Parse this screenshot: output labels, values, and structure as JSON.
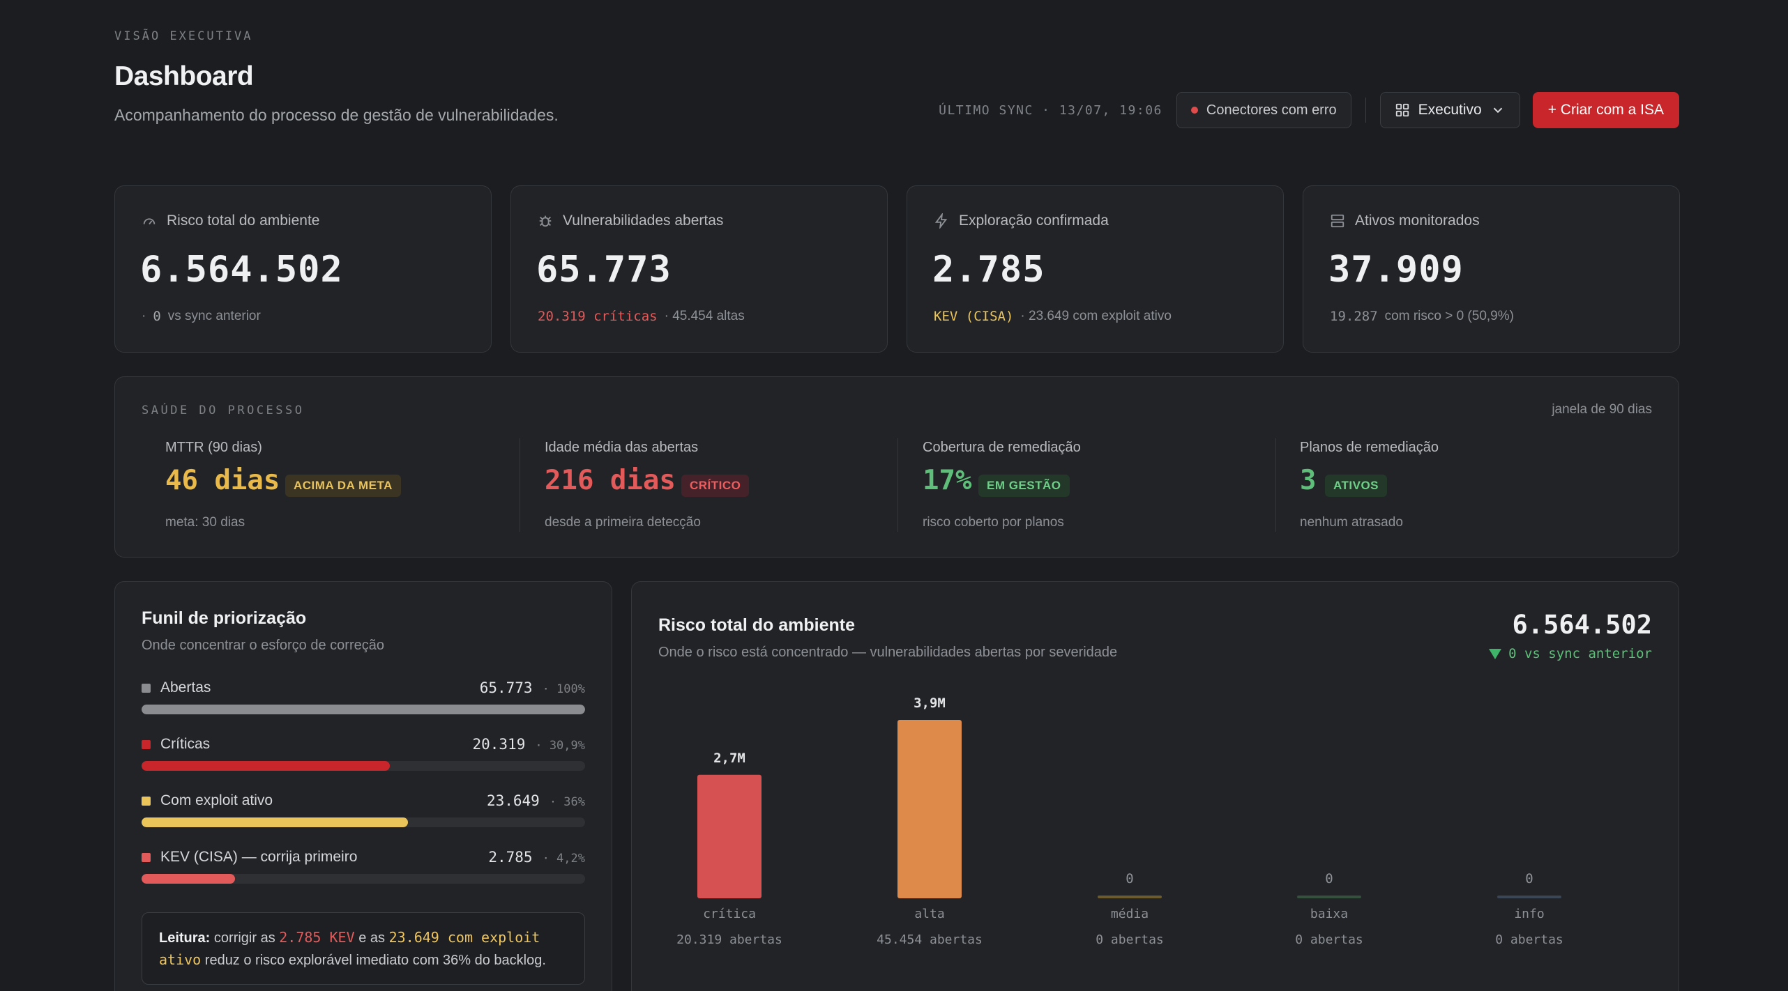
{
  "header": {
    "eyebrow": "VISÃO EXECUTIVA",
    "title": "Dashboard",
    "subtitle": "Acompanhamento do processo de gestão de vulnerabilidades.",
    "sync": "ÚLTIMO SYNC · 13/07, 19:06",
    "connectors_label": "Conectores com erro",
    "view_label": "Executivo",
    "create_label": "+ Criar com a ISA"
  },
  "kpis": [
    {
      "label": "Risco total do ambiente",
      "value": "6.564.502",
      "sub_prefix": "·",
      "sub_highlight": "0",
      "sub_rest": "vs sync anterior",
      "icon": "gauge-icon"
    },
    {
      "label": "Vulnerabilidades abertas",
      "value": "65.773",
      "sub_highlight": "20.319 críticas",
      "sub_rest": "· 45.454 altas",
      "icon": "bug-icon"
    },
    {
      "label": "Exploração confirmada",
      "value": "2.785",
      "sub_highlight": "KEV (CISA)",
      "sub_rest": "· 23.649 com exploit ativo",
      "icon": "bolt-icon"
    },
    {
      "label": "Ativos monitorados",
      "value": "37.909",
      "sub_highlight": "19.287",
      "sub_rest": "com risco > 0 (50,9%)",
      "icon": "server-icon"
    }
  ],
  "health": {
    "title": "SAÚDE DO PROCESSO",
    "window": "janela de 90 dias",
    "metrics": [
      {
        "label": "MTTR (90 dias)",
        "value": "46 dias",
        "badge": "ACIMA DA META",
        "sub": "meta: 30 dias",
        "color": "#e9b949",
        "badge_bg": "#3b3423",
        "badge_fg": "#e9c45e"
      },
      {
        "label": "Idade média das abertas",
        "value": "216 dias",
        "badge": "CRÍTICO",
        "sub": "desde a primeira detecção",
        "color": "#e35a5a",
        "badge_bg": "#45222a",
        "badge_fg": "#ec5d5d"
      },
      {
        "label": "Cobertura de remediação",
        "value": "17%",
        "badge": "EM GESTÃO",
        "sub": "risco coberto por planos",
        "color": "#5fbf7a",
        "badge_bg": "#233829",
        "badge_fg": "#6fcf88"
      },
      {
        "label": "Planos de remediação",
        "value": "3",
        "badge": "ATIVOS",
        "sub": "nenhum atrasado",
        "color": "#5fbf7a",
        "badge_bg": "#233829",
        "badge_fg": "#6fcf88"
      }
    ]
  },
  "funnel": {
    "title": "Funil de priorização",
    "subtitle": "Onde concentrar o esforço de correção",
    "rows": [
      {
        "label": "Abertas",
        "value": "65.773",
        "pct": "· 100%",
        "fraction": 1.0,
        "color": "#8a8c90"
      },
      {
        "label": "Críticas",
        "value": "20.319",
        "pct": "· 30,9%",
        "fraction": 0.56,
        "color": "#c8262a"
      },
      {
        "label": "Com exploit ativo",
        "value": "23.649",
        "pct": "· 36%",
        "fraction": 0.6,
        "color": "#ecc55a"
      },
      {
        "label": "KEV (CISA) — corrija primeiro",
        "value": "2.785",
        "pct": "· 4,2%",
        "fraction": 0.21,
        "color": "#e35a5a"
      }
    ],
    "reading": {
      "lead": "Leitura:",
      "t1": "corrigir as",
      "kev": "2.785 KEV",
      "t2": "e as",
      "exploit": "23.649 com exploit ativo",
      "t3": "reduz o risco explorável imediato com 36% do backlog."
    }
  },
  "risk_chart": {
    "title": "Risco total do ambiente",
    "subtitle": "Onde o risco está concentrado — vulnerabilidades abertas por severidade",
    "total": "6.564.502",
    "delta": "0 vs sync anterior"
  },
  "chart_data": {
    "type": "bar",
    "categories": [
      "crítica",
      "alta",
      "média",
      "baixa",
      "info"
    ],
    "values": [
      2.7,
      3.9,
      0,
      0,
      0
    ],
    "value_labels": [
      "2,7M",
      "3,9M",
      "0",
      "0",
      "0"
    ],
    "sublabels": [
      "20.319 abertas",
      "45.454 abertas",
      "0 abertas",
      "0 abertas",
      "0 abertas"
    ],
    "colors": [
      "#d65252",
      "#dd8a4a",
      "#6b5a2e",
      "#35503c",
      "#3a4655"
    ],
    "ylim": [
      0,
      3.9
    ],
    "grid": false,
    "legend": "none"
  }
}
